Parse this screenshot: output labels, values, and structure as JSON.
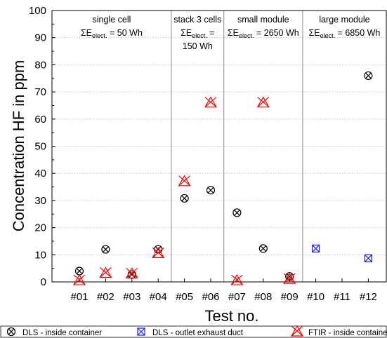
{
  "chart_data": {
    "type": "scatter",
    "ylabel": "Concentration HF in ppm",
    "xlabel": "Test no.",
    "ylim": [
      0,
      100
    ],
    "yticks": [
      0,
      10,
      20,
      30,
      40,
      50,
      60,
      70,
      80,
      90,
      100
    ],
    "grid": "horizontal dotted",
    "categories": [
      "#01",
      "#02",
      "#03",
      "#04",
      "#05",
      "#06",
      "#07",
      "#08",
      "#09",
      "#10",
      "#11",
      "#12"
    ],
    "groups": [
      {
        "name": "single cell",
        "energy": "ΣE",
        "sub": "elect.",
        "value": " = 50 Wh",
        "cont": "",
        "start": 0,
        "end": 3
      },
      {
        "name": "stack 3 cells",
        "energy": "ΣE",
        "sub": "elect.",
        "value": " =",
        "cont": "150 Wh",
        "start": 4,
        "end": 5
      },
      {
        "name": "small module",
        "energy": "ΣE",
        "sub": "elect.",
        "value": " = 2650 Wh",
        "cont": "",
        "start": 6,
        "end": 8
      },
      {
        "name": "large module",
        "energy": "ΣE",
        "sub": "elect.",
        "value": " = 6850 Wh",
        "cont": "",
        "start": 9,
        "end": 11
      }
    ],
    "series": [
      {
        "name": "DLS - inside container",
        "marker": "circle-x",
        "color": "#000000",
        "values": [
          4.0,
          12.0,
          2.7,
          12.0,
          30.8,
          33.8,
          25.5,
          12.3,
          2.0,
          null,
          null,
          76.0
        ]
      },
      {
        "name": "DLS - outlet exhaust duct",
        "marker": "square-x",
        "color": "#1a1aff",
        "values": [
          null,
          null,
          null,
          null,
          null,
          null,
          null,
          null,
          null,
          12.3,
          null,
          8.7
        ]
      },
      {
        "name": "FTIR - inside containe",
        "marker": "triangle-x",
        "color": "#ff0000",
        "values": [
          0.5,
          3.2,
          3.0,
          10.5,
          37.0,
          66.0,
          0.5,
          66.0,
          1.0,
          null,
          null,
          null
        ]
      }
    ]
  }
}
